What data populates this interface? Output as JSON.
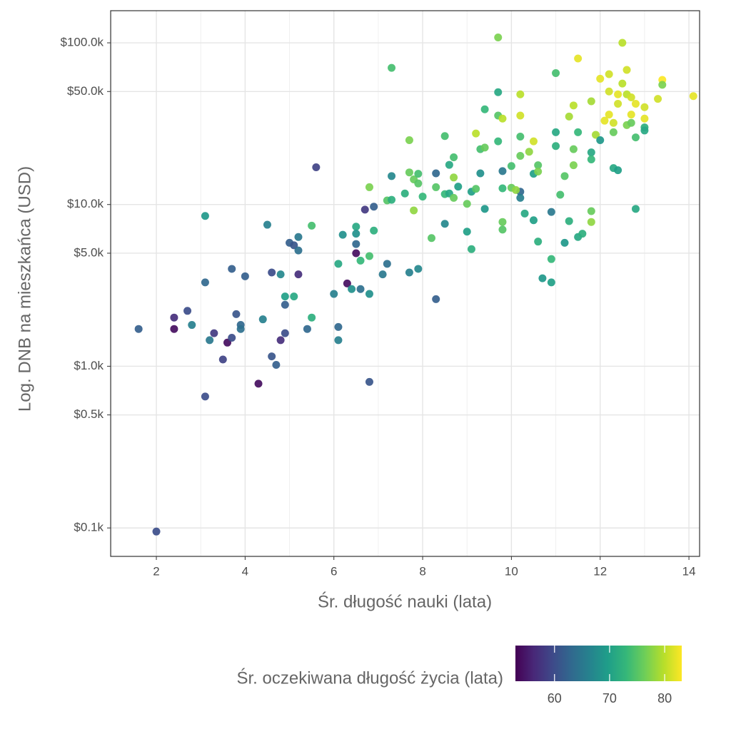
{
  "chart_data": {
    "type": "scatter",
    "x_label": "Śr. długość nauki (lata)",
    "y_label": "Log. DNB na mieszkańca (USD)",
    "color_label": "Śr. oczekiwana długość życia (lata)",
    "colormap": "viridis",
    "ylog": true,
    "grid": true,
    "xlim": [
      0.97,
      14.24
    ],
    "xticks": [
      2,
      4,
      6,
      8,
      10,
      12,
      14
    ],
    "ylim": [
      66.7,
      158000
    ],
    "yticks": [
      {
        "value": 100,
        "label": "$0.1k"
      },
      {
        "value": 500,
        "label": "$0.5k"
      },
      {
        "value": 1000,
        "label": "$1.0k"
      },
      {
        "value": 5000,
        "label": "$5.0k"
      },
      {
        "value": 10000,
        "label": "$10.0k"
      },
      {
        "value": 50000,
        "label": "$50.0k"
      },
      {
        "value": 100000,
        "label": "$100.0k"
      }
    ],
    "clim": [
      52.9,
      83.1
    ],
    "cticks": [
      60,
      70,
      80
    ],
    "x": [
      1.6,
      2.0,
      2.4,
      2.4,
      2.7,
      2.8,
      3.1,
      3.1,
      3.1,
      3.2,
      3.3,
      3.5,
      3.6,
      3.7,
      3.7,
      3.8,
      3.9,
      3.9,
      4.0,
      4.3,
      4.4,
      4.5,
      4.6,
      4.6,
      4.7,
      4.8,
      4.8,
      4.9,
      4.9,
      4.9,
      5.0,
      5.1,
      5.1,
      5.2,
      5.2,
      5.2,
      5.4,
      5.5,
      5.5,
      5.6,
      6.0,
      6.1,
      6.1,
      6.1,
      6.2,
      6.3,
      6.4,
      6.5,
      6.5,
      6.5,
      6.5,
      6.6,
      6.6,
      6.7,
      6.8,
      6.8,
      6.8,
      6.8,
      6.9,
      6.9,
      7.1,
      7.2,
      7.2,
      7.3,
      7.3,
      7.3,
      7.6,
      7.7,
      7.7,
      7.7,
      7.8,
      7.8,
      7.9,
      7.9,
      7.9,
      8.0,
      8.2,
      8.3,
      8.3,
      8.3,
      8.5,
      8.5,
      8.5,
      8.6,
      8.6,
      8.7,
      8.7,
      8.7,
      8.8,
      9.0,
      9.0,
      9.1,
      9.1,
      9.2,
      9.2,
      9.3,
      9.3,
      9.4,
      9.4,
      9.4,
      9.7,
      9.7,
      9.7,
      9.7,
      9.8,
      9.8,
      9.8,
      9.8,
      9.8,
      10.0,
      10.0,
      10.2,
      10.2,
      10.2,
      10.2,
      10.2,
      10.2,
      10.1,
      10.3,
      10.4,
      10.5,
      10.5,
      10.5,
      10.6,
      10.6,
      10.6,
      10.7,
      10.9,
      10.9,
      10.9,
      11.0,
      11.0,
      11.0,
      11.1,
      11.2,
      11.2,
      11.3,
      11.3,
      11.4,
      11.4,
      11.4,
      11.5,
      11.5,
      11.5,
      11.6,
      11.8,
      11.8,
      11.8,
      11.8,
      11.8,
      11.9,
      12.0,
      12.0,
      12.1,
      12.2,
      12.2,
      12.2,
      12.3,
      12.3,
      12.3,
      12.4,
      12.4,
      12.4,
      12.5,
      12.5,
      12.6,
      12.6,
      12.6,
      12.7,
      12.7,
      12.7,
      12.8,
      12.8,
      12.8,
      13.0,
      13.0,
      13.0,
      13.0,
      13.3,
      13.4,
      13.4,
      14.1
    ],
    "values": [
      1700,
      95,
      2000,
      1700,
      2200,
      1800,
      8500,
      3300,
      650,
      1450,
      1600,
      1100,
      1400,
      1500,
      4000,
      2100,
      1800,
      1700,
      3600,
      780,
      1950,
      7500,
      3800,
      1150,
      1020,
      1450,
      3700,
      2700,
      2400,
      1600,
      5800,
      5600,
      2700,
      6300,
      5200,
      3700,
      1700,
      7400,
      2000,
      17000,
      2800,
      4300,
      1750,
      1450,
      6500,
      3250,
      3000,
      7300,
      6600,
      5700,
      5000,
      4500,
      3000,
      9300,
      12800,
      4800,
      2800,
      800,
      9700,
      6900,
      3700,
      4300,
      10600,
      10700,
      15000,
      70000,
      11700,
      25000,
      15800,
      3800,
      9200,
      14300,
      15500,
      4000,
      13500,
      11200,
      6200,
      15600,
      2600,
      12800,
      11600,
      26500,
      7600,
      11700,
      17600,
      19600,
      14700,
      11000,
      12900,
      10100,
      6800,
      5300,
      12000,
      27500,
      12500,
      22000,
      15600,
      38800,
      22500,
      9400,
      108000,
      49500,
      35500,
      24600,
      34000,
      7800,
      16100,
      7000,
      12600,
      17300,
      12700,
      48000,
      35500,
      26300,
      20000,
      12000,
      11000,
      12300,
      8800,
      21200,
      24600,
      15500,
      8000,
      17500,
      16000,
      5900,
      3500,
      9000,
      4600,
      3300,
      65000,
      28000,
      23000,
      11500,
      15000,
      5800,
      35000,
      7900,
      41000,
      22000,
      17500,
      80000,
      28000,
      6300,
      6600,
      43500,
      21000,
      19000,
      9100,
      7800,
      27000,
      60000,
      25000,
      33000,
      64000,
      50000,
      36000,
      32000,
      28000,
      16800,
      16300,
      48000,
      42000,
      100000,
      56000,
      48000,
      68000,
      31000,
      46000,
      36000,
      32000,
      42000,
      26000,
      9400,
      40000,
      34000,
      30000,
      28700,
      45000,
      59000,
      55000,
      46800
    ],
    "color_values": [
      62,
      60,
      57,
      54,
      60,
      66,
      69,
      63,
      60,
      65,
      58,
      59,
      54,
      60,
      62,
      61,
      63,
      64,
      62,
      54,
      66,
      66,
      60,
      61,
      62,
      57,
      67,
      70,
      62,
      60,
      62,
      61,
      71,
      65,
      64,
      57,
      63,
      74,
      72,
      59,
      66,
      71,
      63,
      66,
      68,
      54,
      68,
      71,
      68,
      63,
      54,
      73,
      64,
      58,
      77,
      74,
      68,
      61,
      62,
      72,
      65,
      64,
      75,
      72,
      67,
      74,
      72,
      77,
      76,
      66,
      78,
      76,
      74,
      67,
      75,
      73,
      75,
      63,
      62,
      75,
      73,
      74,
      67,
      71,
      71,
      74,
      78,
      76,
      70,
      76,
      70,
      72,
      70,
      80,
      75,
      74,
      68,
      73,
      76,
      69,
      77,
      71,
      75,
      73,
      80,
      76,
      65,
      75,
      73,
      74,
      76,
      80,
      81,
      74,
      76,
      63,
      66,
      78,
      71,
      78,
      81,
      70,
      70,
      75,
      77,
      72,
      69,
      65,
      73,
      70,
      74,
      71,
      72,
      74,
      75,
      69,
      79,
      72,
      80,
      76,
      77,
      82,
      73,
      71,
      72,
      79,
      71,
      73,
      76,
      78,
      79,
      82,
      69,
      82,
      81,
      81,
      82,
      81,
      76,
      71,
      70,
      82,
      81,
      80,
      80,
      80,
      81,
      77,
      81,
      82,
      76,
      82,
      74,
      71,
      81,
      82,
      72,
      71,
      81,
      83,
      77,
      82
    ]
  }
}
